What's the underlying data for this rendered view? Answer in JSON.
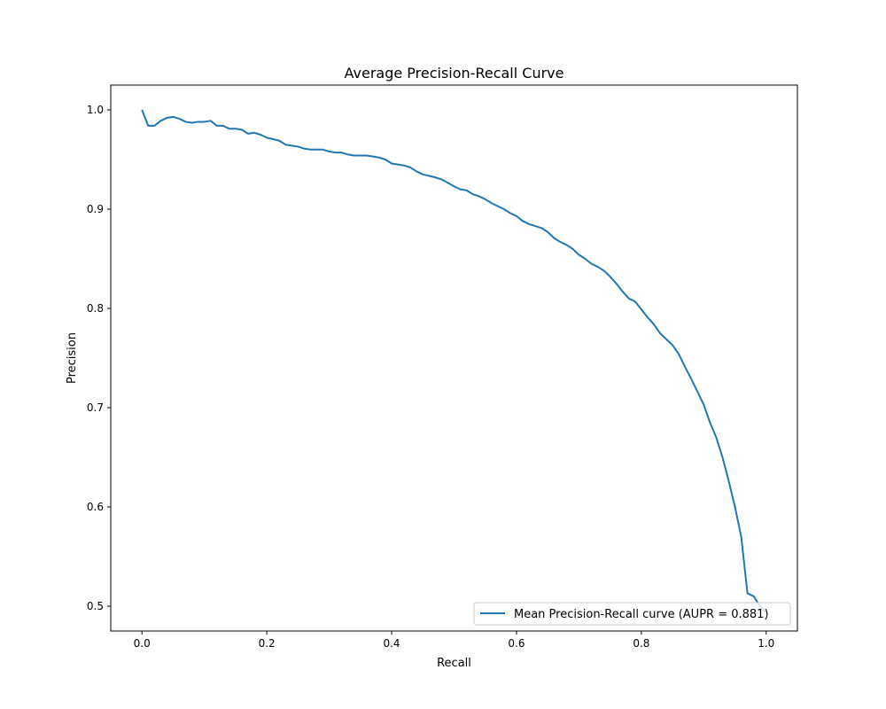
{
  "chart_data": {
    "type": "line",
    "title": "Average Precision-Recall Curve",
    "xlabel": "Recall",
    "ylabel": "Precision",
    "xlim": [
      -0.05,
      1.05
    ],
    "ylim": [
      0.475,
      1.025
    ],
    "xticks": [
      0.0,
      0.2,
      0.4,
      0.6,
      0.8,
      1.0
    ],
    "xtick_labels": [
      "0.0",
      "0.2",
      "0.4",
      "0.6",
      "0.8",
      "1.0"
    ],
    "yticks": [
      0.5,
      0.6,
      0.7,
      0.8,
      0.9,
      1.0
    ],
    "ytick_labels": [
      "0.5",
      "0.6",
      "0.7",
      "0.8",
      "0.9",
      "1.0"
    ],
    "grid": false,
    "legend_position": "lower right",
    "series": [
      {
        "name": "Mean Precision-Recall curve (AUPR = 0.881)",
        "color": "#1f77b4",
        "x": [
          0.0,
          0.01,
          0.02,
          0.03,
          0.04,
          0.05,
          0.06,
          0.07,
          0.08,
          0.09,
          0.1,
          0.11,
          0.12,
          0.13,
          0.14,
          0.15,
          0.16,
          0.17,
          0.18,
          0.19,
          0.2,
          0.22,
          0.23,
          0.25,
          0.26,
          0.27,
          0.28,
          0.29,
          0.3,
          0.31,
          0.32,
          0.33,
          0.34,
          0.36,
          0.38,
          0.39,
          0.4,
          0.42,
          0.43,
          0.44,
          0.45,
          0.47,
          0.48,
          0.5,
          0.51,
          0.52,
          0.53,
          0.54,
          0.55,
          0.56,
          0.57,
          0.58,
          0.59,
          0.6,
          0.61,
          0.62,
          0.63,
          0.64,
          0.65,
          0.66,
          0.67,
          0.68,
          0.69,
          0.7,
          0.71,
          0.72,
          0.73,
          0.74,
          0.75,
          0.76,
          0.77,
          0.78,
          0.79,
          0.8,
          0.81,
          0.82,
          0.83,
          0.84,
          0.85,
          0.86,
          0.87,
          0.88,
          0.89,
          0.9,
          0.91,
          0.92,
          0.93,
          0.94,
          0.95,
          0.96,
          0.97,
          0.98,
          0.99,
          1.0
        ],
        "y": [
          1.0,
          0.984,
          0.984,
          0.989,
          0.992,
          0.993,
          0.991,
          0.988,
          0.987,
          0.988,
          0.988,
          0.989,
          0.984,
          0.984,
          0.981,
          0.981,
          0.98,
          0.976,
          0.977,
          0.975,
          0.972,
          0.969,
          0.965,
          0.963,
          0.961,
          0.96,
          0.96,
          0.96,
          0.958,
          0.957,
          0.957,
          0.955,
          0.954,
          0.954,
          0.952,
          0.95,
          0.946,
          0.944,
          0.942,
          0.938,
          0.935,
          0.932,
          0.93,
          0.923,
          0.92,
          0.919,
          0.915,
          0.913,
          0.91,
          0.906,
          0.903,
          0.9,
          0.896,
          0.893,
          0.888,
          0.885,
          0.883,
          0.881,
          0.877,
          0.871,
          0.867,
          0.864,
          0.86,
          0.854,
          0.85,
          0.845,
          0.842,
          0.838,
          0.832,
          0.825,
          0.817,
          0.81,
          0.807,
          0.799,
          0.791,
          0.784,
          0.775,
          0.769,
          0.763,
          0.754,
          0.741,
          0.729,
          0.716,
          0.703,
          0.685,
          0.67,
          0.65,
          0.626,
          0.6,
          0.57,
          0.513,
          0.51,
          0.5,
          0.493
        ]
      }
    ]
  }
}
